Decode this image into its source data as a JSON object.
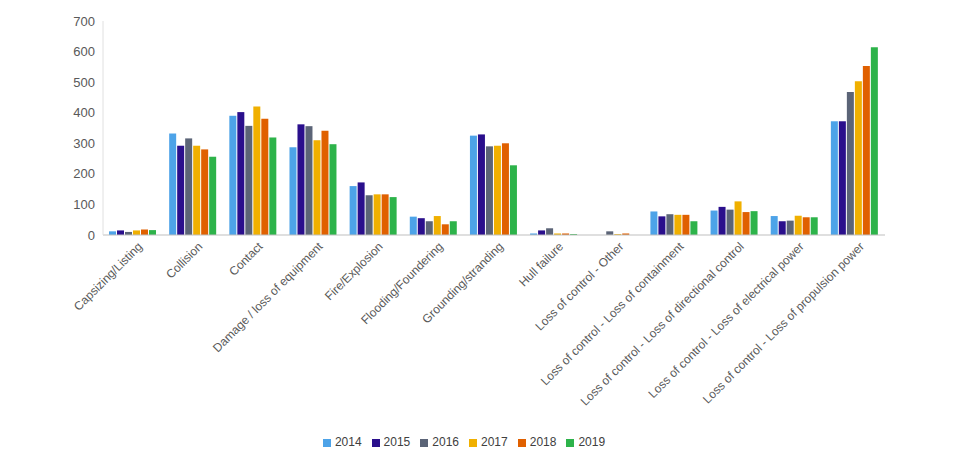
{
  "chart_data": {
    "type": "bar",
    "categories": [
      "Capsizing/Listing",
      "Collision",
      "Contact",
      "Damage / loss of equipment",
      "Fire/Explosion",
      "Flooding/Foundering",
      "Grounding/stranding",
      "Hull failure",
      "Loss of control - Other",
      "Loss of control - Loss of containment",
      "Loss of control - Loss of directional control",
      "Loss of control - Loss of electrical power",
      "Loss of control - Loss of propulsion power"
    ],
    "series": [
      {
        "name": "2014",
        "color": "#4da3e8",
        "values": [
          12,
          332,
          390,
          287,
          160,
          60,
          325,
          5,
          0,
          77,
          80,
          62,
          372
        ]
      },
      {
        "name": "2015",
        "color": "#2a0f8c",
        "values": [
          15,
          292,
          402,
          362,
          172,
          55,
          329,
          15,
          0,
          61,
          92,
          45,
          372
        ]
      },
      {
        "name": "2016",
        "color": "#5b6477",
        "values": [
          10,
          316,
          357,
          356,
          130,
          45,
          290,
          22,
          12,
          68,
          83,
          47,
          468
        ]
      },
      {
        "name": "2017",
        "color": "#f0b000",
        "values": [
          15,
          292,
          420,
          310,
          133,
          62,
          292,
          5,
          3,
          66,
          110,
          63,
          503
        ]
      },
      {
        "name": "2018",
        "color": "#e06000",
        "values": [
          18,
          280,
          380,
          341,
          133,
          35,
          300,
          5,
          5,
          66,
          75,
          58,
          553
        ]
      },
      {
        "name": "2019",
        "color": "#2db34a",
        "values": [
          16,
          256,
          319,
          297,
          124,
          45,
          228,
          3,
          0,
          45,
          78,
          58,
          614
        ]
      }
    ],
    "ylim": [
      0,
      700
    ],
    "yticks": [
      0,
      100,
      200,
      300,
      400,
      500,
      600,
      700
    ],
    "grid": false,
    "legend": "bottom"
  }
}
